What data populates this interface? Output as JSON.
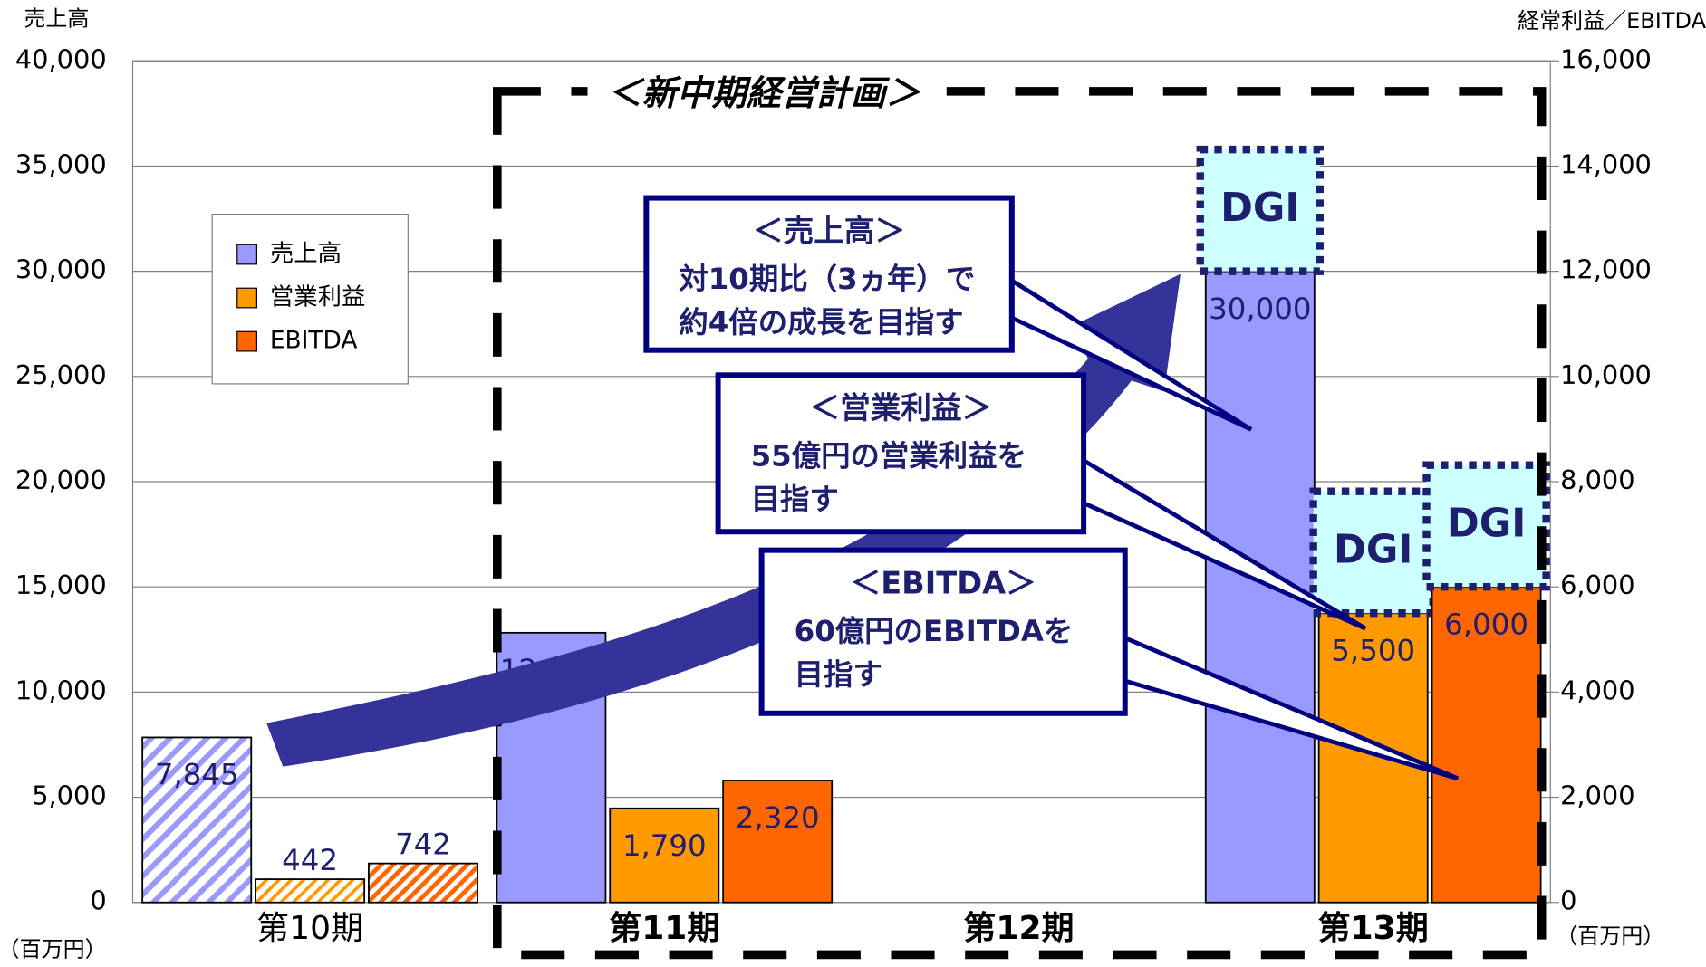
{
  "chart_data": {
    "type": "bar",
    "ylabel": "売上高",
    "y2label": "経常利益／EBITDA",
    "yunit": "（百万円）",
    "y2unit": "（百万円）",
    "categories": [
      "第10期",
      "第11期",
      "第12期",
      "第13期"
    ],
    "series": [
      {
        "name": "売上高",
        "color": "#9999ff",
        "values": [
          7845,
          12820,
          null,
          30000
        ],
        "value_labels": [
          "7,845",
          "12,820",
          null,
          "30,000"
        ]
      },
      {
        "name": "営業利益",
        "color": "#ff9900",
        "axis": "y2",
        "values": [
          442,
          1790,
          null,
          5500
        ],
        "value_labels": [
          "442",
          "1,790",
          null,
          "5,500"
        ]
      },
      {
        "name": "EBITDA",
        "color": "#ff6600",
        "axis": "y2",
        "values": [
          742,
          2320,
          null,
          6000
        ],
        "value_labels": [
          "742",
          "2,320",
          null,
          "6,000"
        ]
      }
    ],
    "ylim": [
      0,
      40000
    ],
    "yticks": [
      0,
      {
        "value": 5000,
        "label": "5,000"
      },
      {
        "value": 10000,
        "label": "10,000"
      },
      {
        "value": 15000,
        "label": "15,000"
      },
      {
        "value": 20000,
        "label": "20,000"
      },
      {
        "value": 25000,
        "label": "25,000"
      },
      {
        "value": 30000,
        "label": "30,000"
      },
      {
        "value": 35000,
        "label": "35,000"
      },
      {
        "value": 40000,
        "label": "40,000"
      }
    ],
    "y2lim": [
      0,
      16000
    ],
    "y2ticks": [
      0,
      {
        "value": 2000,
        "label": "2,000"
      },
      {
        "value": 4000,
        "label": "4,000"
      },
      {
        "value": 6000,
        "label": "6,000"
      },
      {
        "value": 8000,
        "label": "8,000"
      },
      {
        "value": 10000,
        "label": "10,000"
      },
      {
        "value": 12000,
        "label": "12,000"
      },
      {
        "value": 14000,
        "label": "14,000"
      },
      {
        "value": 16000,
        "label": "16,000"
      }
    ],
    "grid": true,
    "plan_title": "＜新中期経営計画＞",
    "dgi_label": "DGI",
    "callouts": [
      {
        "title": "＜売上高＞",
        "lines": [
          "対10期比（3ヵ年）で",
          "約4倍の成長を目指す"
        ]
      },
      {
        "title": "＜営業利益＞",
        "lines": [
          "55億円の営業利益を",
          "目指す"
        ]
      },
      {
        "title": "＜EBITDA＞",
        "lines": [
          "60億円のEBITDAを",
          "目指す"
        ]
      }
    ]
  }
}
